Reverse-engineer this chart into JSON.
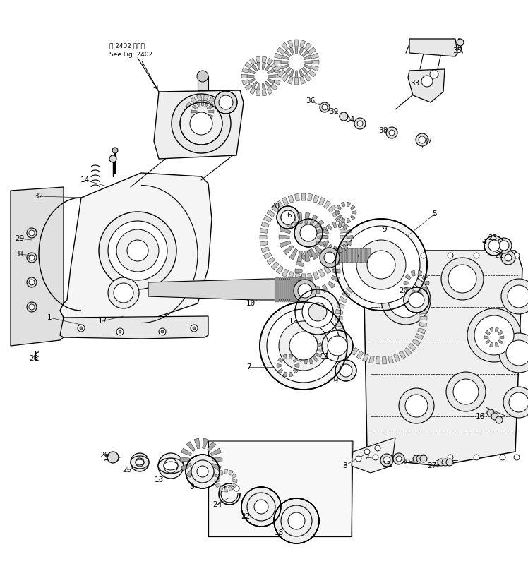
{
  "background_color": "#ffffff",
  "line_color": "#000000",
  "figsize": [
    7.48,
    8.26
  ],
  "dpi": 100,
  "note_line1": "図 2402 図参照",
  "note_line2": "See Fig. 2402"
}
